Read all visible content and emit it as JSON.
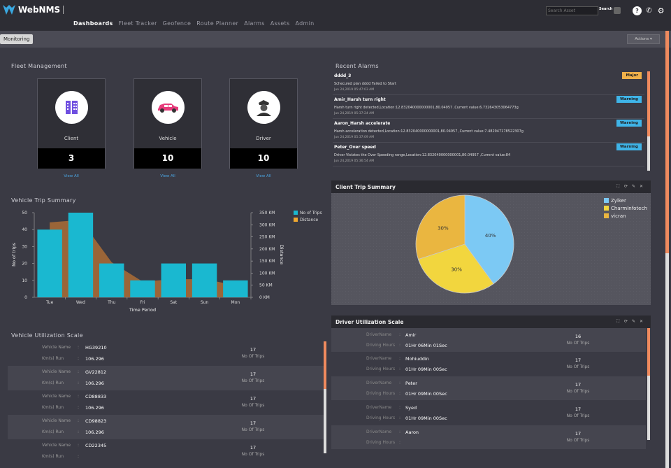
{
  "app": {
    "name": "WebNMS"
  },
  "nav": [
    "Dashboards",
    "Fleet Tracker",
    "Geofence",
    "Route Planner",
    "Alarms",
    "Assets",
    "Admin"
  ],
  "search": {
    "placeholder": "Search Asset",
    "button": "Search"
  },
  "top_icons": [
    "help-icon",
    "phone-icon",
    "gear-icon"
  ],
  "tab": {
    "label": "Monitoring"
  },
  "actions": {
    "label": "Actions ▾"
  },
  "fleet": {
    "title": "Fleet Management",
    "cards": [
      {
        "label": "Client",
        "value": "3",
        "icon": "building-icon",
        "link": "View All"
      },
      {
        "label": "Vehicle",
        "value": "10",
        "icon": "car-icon",
        "link": "View All"
      },
      {
        "label": "Driver",
        "value": "10",
        "icon": "driver-icon",
        "link": "View All"
      }
    ]
  },
  "alarms": {
    "title": "Recent Alarms",
    "items": [
      {
        "title": "dddd_3",
        "desc": "Scheculed plan dddd Failed to Start",
        "time": "Jun 24,2019 05:47:03 AM",
        "severity": "Major"
      },
      {
        "title": "Amir_Harsh turn right",
        "desc": "Harsh turn right detected,Location:12.832040000000001,80.04957 ,Current value:6.732643053064773g",
        "time": "Jun 24,2019 05:37:24 AM",
        "severity": "Warning"
      },
      {
        "title": "Aaron_Harsh accelerate",
        "desc": "Harsh acceleration detected,Location:12.832040000000001,80.04957 ,Current value:7.482947178522307g",
        "time": "Jun 24,2019 05:37:09 AM",
        "severity": "Warning"
      },
      {
        "title": "Peter_Over speed",
        "desc": "Driver Violates the Over Speeding range,Location:12.832040000000001,80.04957 ,Current value:84",
        "time": "Jun 24,2019 05:36:54 AM",
        "severity": "Warning"
      }
    ]
  },
  "colors": {
    "major": "#f0b04a",
    "warning": "#3fb4e8",
    "bar": "#1ab8d0",
    "area": "#a56a37",
    "accent": "#ef8a5e"
  },
  "trip_chart_title": "Vehicle Trip Summary",
  "chart_data": [
    {
      "type": "bar",
      "title": "Vehicle Trip Summary",
      "xlabel": "Time Period",
      "ylabel": "No of trips",
      "y2label": "Distance",
      "categories": [
        "Tue",
        "Wed",
        "Thu",
        "Fri",
        "Sat",
        "Sun",
        "Mon"
      ],
      "ylim": [
        0,
        50
      ],
      "y2lim": [
        0,
        350
      ],
      "yticks": [
        "0",
        "10",
        "20",
        "30",
        "40",
        "50"
      ],
      "y2ticks": [
        "0 KM",
        "50 KM",
        "100 KM",
        "150 KM",
        "200 KM",
        "250 KM",
        "300 KM",
        "350 KM"
      ],
      "series": [
        {
          "name": "No of Trips",
          "type": "bar",
          "values": [
            40,
            50,
            20,
            10,
            20,
            20,
            10
          ]
        },
        {
          "name": "Distance",
          "type": "area",
          "values": [
            310,
            320,
            145,
            65,
            75,
            75,
            50
          ]
        }
      ],
      "legend": "top-right"
    },
    {
      "type": "pie",
      "title": "Client Trip Summary",
      "series": [
        {
          "name": "Zylker",
          "value": 40,
          "label": "40%"
        },
        {
          "name": "CharmInfotech",
          "value": 30,
          "label": "30%"
        },
        {
          "name": "vicran",
          "value": 30,
          "label": "30%"
        }
      ],
      "legend": "top-right"
    }
  ],
  "client_trip": {
    "title": "Client Trip Summary"
  },
  "vehicle_util": {
    "title": "Vehicle Utilization Scale",
    "key1": "Vehicle Name",
    "key2": "Km(s) Run",
    "trips_label": "No Of Trips",
    "rows": [
      {
        "name": "HG39210",
        "km": "106.296",
        "trips": "17"
      },
      {
        "name": "GV22812",
        "km": "106.296",
        "trips": "17"
      },
      {
        "name": "CD88833",
        "km": "106.296",
        "trips": "17"
      },
      {
        "name": "CD98823",
        "km": "106.296",
        "trips": "17"
      },
      {
        "name": "CD22345",
        "km": "",
        "trips": "17"
      }
    ]
  },
  "driver_util": {
    "title": "Driver Utilization Scale",
    "key1": "DriverName",
    "key2": "Driving Hours",
    "trips_label": "No Of Trips",
    "rows": [
      {
        "name": "Amir",
        "hours": "01Hr 06Min 01Sec",
        "trips": "16"
      },
      {
        "name": "Mohiuddin",
        "hours": "01Hr 09Min 00Sec",
        "trips": "17"
      },
      {
        "name": "Peter",
        "hours": "01Hr 09Min 00Sec",
        "trips": "17"
      },
      {
        "name": "Syed",
        "hours": "01Hr 09Min 00Sec",
        "trips": "17"
      },
      {
        "name": "Aaron",
        "hours": "",
        "trips": "17"
      }
    ]
  }
}
